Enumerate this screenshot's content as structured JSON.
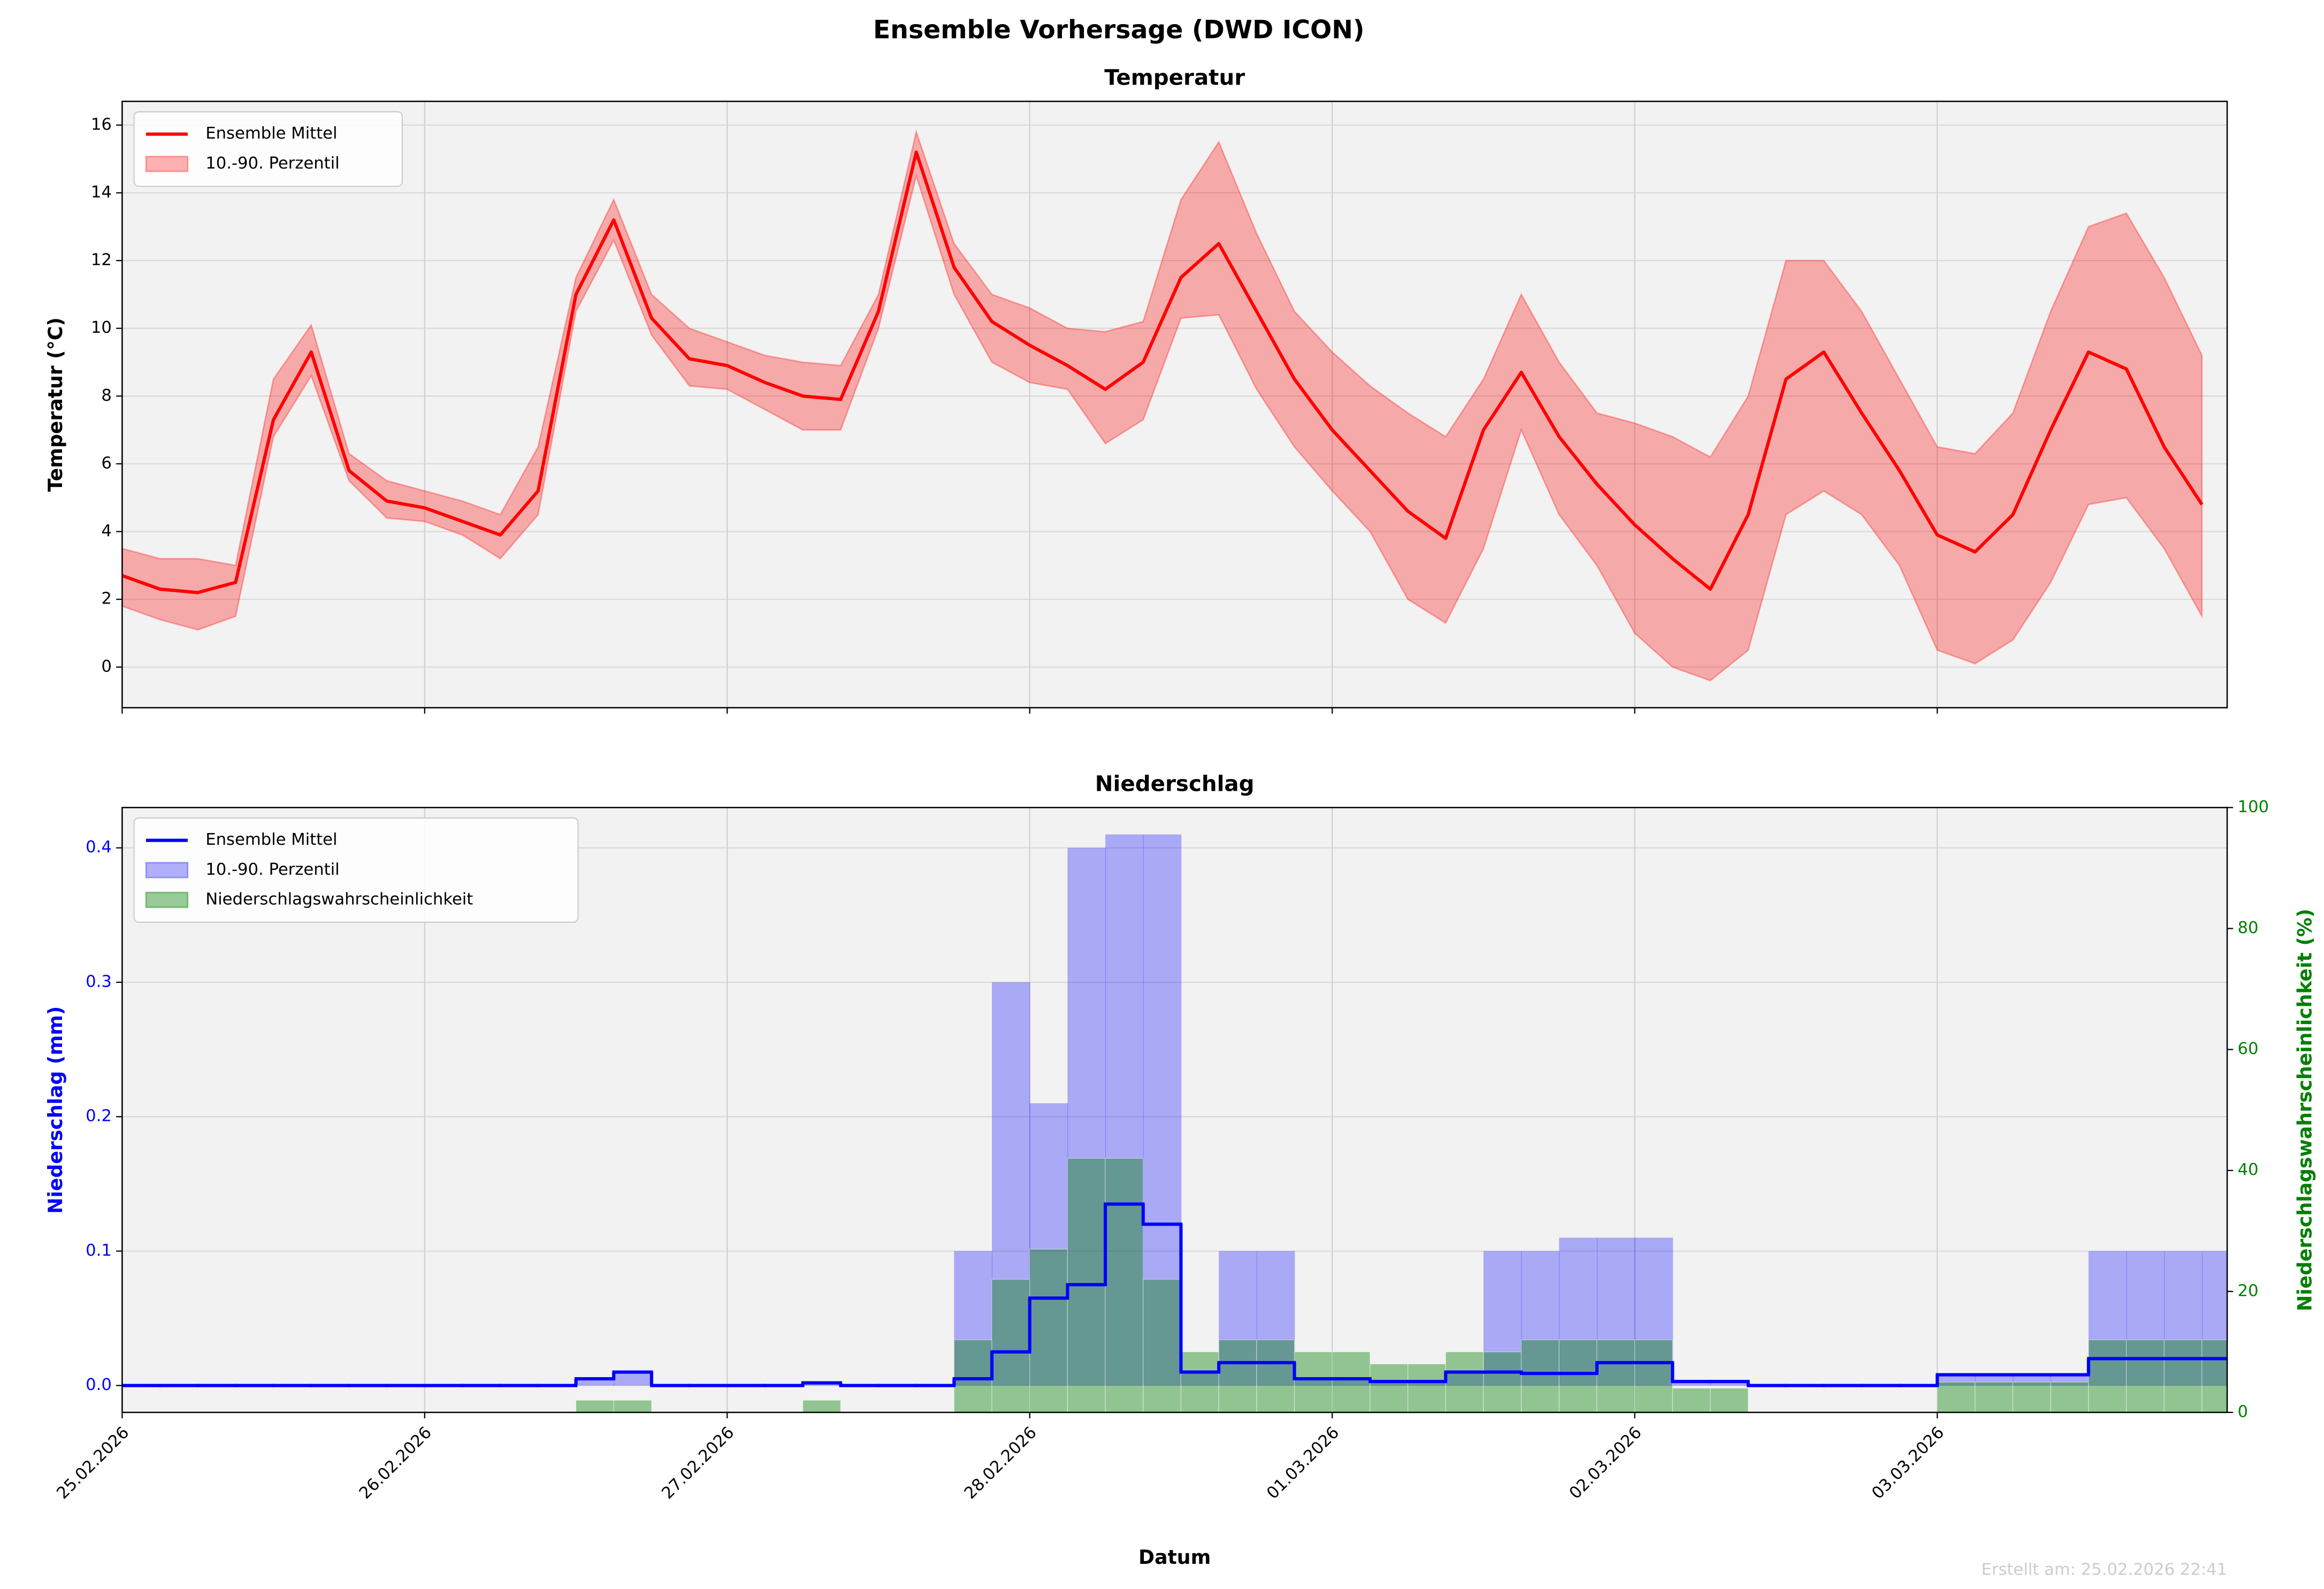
{
  "title": "Ensemble Vorhersage (DWD ICON)",
  "footer": "Erstellt am: 25.02.2026 22:41",
  "chart_data": [
    {
      "type": "line",
      "title": "Temperatur",
      "y_label": "Temperatur (°C)",
      "x": [
        "2026-02-25T00:00",
        "2026-02-25T03:00",
        "2026-02-25T06:00",
        "2026-02-25T09:00",
        "2026-02-25T12:00",
        "2026-02-25T15:00",
        "2026-02-25T18:00",
        "2026-02-25T21:00",
        "2026-02-26T00:00",
        "2026-02-26T03:00",
        "2026-02-26T06:00",
        "2026-02-26T09:00",
        "2026-02-26T12:00",
        "2026-02-26T15:00",
        "2026-02-26T18:00",
        "2026-02-26T21:00",
        "2026-02-27T00:00",
        "2026-02-27T03:00",
        "2026-02-27T06:00",
        "2026-02-27T09:00",
        "2026-02-27T12:00",
        "2026-02-27T15:00",
        "2026-02-27T18:00",
        "2026-02-27T21:00",
        "2026-02-28T00:00",
        "2026-02-28T03:00",
        "2026-02-28T06:00",
        "2026-02-28T09:00",
        "2026-02-28T12:00",
        "2026-02-28T15:00",
        "2026-02-28T18:00",
        "2026-02-28T21:00",
        "2026-03-01T00:00",
        "2026-03-01T03:00",
        "2026-03-01T06:00",
        "2026-03-01T09:00",
        "2026-03-01T12:00",
        "2026-03-01T15:00",
        "2026-03-01T18:00",
        "2026-03-01T21:00",
        "2026-03-02T00:00",
        "2026-03-02T03:00",
        "2026-03-02T06:00",
        "2026-03-02T09:00",
        "2026-03-02T12:00",
        "2026-03-02T15:00",
        "2026-03-02T18:00",
        "2026-03-02T21:00",
        "2026-03-03T00:00",
        "2026-03-03T03:00",
        "2026-03-03T06:00",
        "2026-03-03T09:00",
        "2026-03-03T12:00",
        "2026-03-03T15:00",
        "2026-03-03T18:00",
        "2026-03-03T21:00"
      ],
      "xlim": [
        "2026-02-25T00:00",
        "2026-03-03T23:00"
      ],
      "xticks": [
        "2026-02-25T00:00",
        "2026-02-26T00:00",
        "2026-02-27T00:00",
        "2026-02-28T00:00",
        "2026-03-01T00:00",
        "2026-03-02T00:00",
        "2026-03-03T00:00"
      ],
      "ylim": [
        -1.2,
        16.7
      ],
      "yticks": [
        0,
        2,
        4,
        6,
        8,
        10,
        12,
        14,
        16
      ],
      "grid": true,
      "legend": "upper left",
      "series": [
        {
          "name": "Ensemble Mittel",
          "color": "#ff0000",
          "values": [
            2.7,
            2.3,
            2.2,
            2.5,
            7.3,
            9.3,
            5.8,
            4.9,
            4.7,
            4.3,
            3.9,
            5.2,
            11.0,
            13.2,
            10.3,
            9.1,
            8.9,
            8.4,
            8.0,
            7.9,
            10.5,
            15.2,
            11.8,
            10.2,
            9.5,
            8.9,
            8.2,
            9.0,
            11.5,
            12.5,
            10.5,
            8.5,
            7.0,
            5.8,
            4.6,
            3.8,
            7.0,
            8.7,
            6.8,
            5.4,
            4.2,
            3.2,
            2.3,
            4.5,
            8.5,
            9.3,
            7.5,
            5.8,
            3.9,
            3.4,
            4.5,
            7.0,
            9.3,
            8.8,
            6.5,
            4.8
          ]
        }
      ],
      "bands": [
        {
          "name": "10.-90. Perzentil",
          "color": "#ff0000",
          "lower": [
            1.8,
            1.4,
            1.1,
            1.5,
            6.8,
            8.6,
            5.5,
            4.4,
            4.3,
            3.9,
            3.2,
            4.5,
            10.5,
            12.6,
            9.8,
            8.3,
            8.2,
            7.6,
            7.0,
            7.0,
            10.0,
            14.5,
            11.0,
            9.0,
            8.4,
            8.2,
            6.6,
            7.3,
            10.3,
            10.4,
            8.2,
            6.5,
            5.2,
            4.0,
            2.0,
            1.3,
            3.5,
            7.0,
            4.5,
            3.0,
            1.0,
            0.0,
            -0.4,
            0.5,
            4.5,
            5.2,
            4.5,
            3.0,
            0.5,
            0.1,
            0.8,
            2.5,
            4.8,
            5.0,
            3.5,
            1.5
          ],
          "upper": [
            3.5,
            3.2,
            3.2,
            3.0,
            8.5,
            10.1,
            6.3,
            5.5,
            5.2,
            4.9,
            4.5,
            6.5,
            11.5,
            13.8,
            11.0,
            10.0,
            9.6,
            9.2,
            9.0,
            8.9,
            11.0,
            15.8,
            12.5,
            11.0,
            10.6,
            10.0,
            9.9,
            10.2,
            13.8,
            15.5,
            12.8,
            10.5,
            9.3,
            8.3,
            7.5,
            6.8,
            8.5,
            11.0,
            9.0,
            7.5,
            7.2,
            6.8,
            6.2,
            8.0,
            12.0,
            12.0,
            10.5,
            8.5,
            6.5,
            6.3,
            7.5,
            10.5,
            13.0,
            13.4,
            11.5,
            9.2
          ]
        }
      ]
    },
    {
      "type": "step",
      "title": "Niederschlag",
      "x_label": "Datum",
      "y_label": "Niederschlag (mm)",
      "y2_label": "Niederschlagswahrscheinlichkeit (%)",
      "x": [
        "2026-02-25T00:00",
        "2026-02-25T03:00",
        "2026-02-25T06:00",
        "2026-02-25T09:00",
        "2026-02-25T12:00",
        "2026-02-25T15:00",
        "2026-02-25T18:00",
        "2026-02-25T21:00",
        "2026-02-26T00:00",
        "2026-02-26T03:00",
        "2026-02-26T06:00",
        "2026-02-26T09:00",
        "2026-02-26T12:00",
        "2026-02-26T15:00",
        "2026-02-26T18:00",
        "2026-02-26T21:00",
        "2026-02-27T00:00",
        "2026-02-27T03:00",
        "2026-02-27T06:00",
        "2026-02-27T09:00",
        "2026-02-27T12:00",
        "2026-02-27T15:00",
        "2026-02-27T18:00",
        "2026-02-27T21:00",
        "2026-02-28T00:00",
        "2026-02-28T03:00",
        "2026-02-28T06:00",
        "2026-02-28T09:00",
        "2026-02-28T12:00",
        "2026-02-28T15:00",
        "2026-02-28T18:00",
        "2026-02-28T21:00",
        "2026-03-01T00:00",
        "2026-03-01T03:00",
        "2026-03-01T06:00",
        "2026-03-01T09:00",
        "2026-03-01T12:00",
        "2026-03-01T15:00",
        "2026-03-01T18:00",
        "2026-03-01T21:00",
        "2026-03-02T00:00",
        "2026-03-02T03:00",
        "2026-03-02T06:00",
        "2026-03-02T09:00",
        "2026-03-02T12:00",
        "2026-03-02T15:00",
        "2026-03-02T18:00",
        "2026-03-02T21:00",
        "2026-03-03T00:00",
        "2026-03-03T03:00",
        "2026-03-03T06:00",
        "2026-03-03T09:00",
        "2026-03-03T12:00",
        "2026-03-03T15:00",
        "2026-03-03T18:00",
        "2026-03-03T21:00"
      ],
      "xlim": [
        "2026-02-25T00:00",
        "2026-03-03T23:00"
      ],
      "xticks": [
        {
          "value": "2026-02-25T00:00",
          "label": "25.02.2026"
        },
        {
          "value": "2026-02-26T00:00",
          "label": "26.02.2026"
        },
        {
          "value": "2026-02-27T00:00",
          "label": "27.02.2026"
        },
        {
          "value": "2026-02-28T00:00",
          "label": "28.02.2026"
        },
        {
          "value": "2026-03-01T00:00",
          "label": "01.03.2026"
        },
        {
          "value": "2026-03-02T00:00",
          "label": "02.03.2026"
        },
        {
          "value": "2026-03-03T00:00",
          "label": "03.03.2026"
        }
      ],
      "ylim": [
        -0.02,
        0.43
      ],
      "yticks": [
        {
          "value": 0,
          "label": "0.0"
        },
        0.1,
        0.2,
        0.3,
        0.4
      ],
      "y2lim": [
        0,
        100
      ],
      "y2ticks": [
        0,
        20,
        40,
        60,
        80,
        100
      ],
      "grid": true,
      "legend": "upper left",
      "series": [
        {
          "name": "Ensemble Mittel",
          "color": "#0000ff",
          "values": [
            0,
            0,
            0,
            0,
            0,
            0,
            0,
            0,
            0,
            0,
            0,
            0,
            0.005,
            0.01,
            0,
            0,
            0,
            0,
            0.002,
            0,
            0,
            0,
            0.005,
            0.025,
            0.065,
            0.075,
            0.135,
            0.12,
            0.01,
            0.017,
            0.017,
            0.005,
            0.005,
            0.003,
            0.003,
            0.01,
            0.01,
            0.009,
            0.009,
            0.017,
            0.017,
            0.003,
            0.003,
            0,
            0,
            0,
            0,
            0,
            0.008,
            0.008,
            0.008,
            0.008,
            0.02,
            0.02,
            0.02,
            0.02
          ]
        },
        {
          "name": "Niederschlagswahrscheinlichkeit",
          "color": "#008000",
          "axis": "y2",
          "values": [
            0,
            0,
            0,
            0,
            0,
            0,
            0,
            0,
            0,
            0,
            0,
            0,
            2,
            2,
            0,
            0,
            0,
            0,
            2,
            0,
            0,
            0,
            12,
            22,
            27,
            42,
            42,
            22,
            10,
            12,
            12,
            10,
            10,
            8,
            8,
            10,
            10,
            12,
            12,
            12,
            12,
            4,
            4,
            0,
            0,
            0,
            0,
            0,
            5,
            5,
            5,
            5,
            12,
            12,
            12,
            12
          ]
        }
      ],
      "bands": [
        {
          "name": "10.-90. Perzentil",
          "color": "#0000ff",
          "lower": [
            0,
            0,
            0,
            0,
            0,
            0,
            0,
            0,
            0,
            0,
            0,
            0,
            0,
            0,
            0,
            0,
            0,
            0,
            0,
            0,
            0,
            0,
            0,
            0,
            0,
            0,
            0,
            0,
            0,
            0,
            0,
            0,
            0,
            0,
            0,
            0,
            0,
            0,
            0,
            0,
            0,
            0,
            0,
            0,
            0,
            0,
            0,
            0,
            0,
            0,
            0,
            0,
            0,
            0,
            0,
            0
          ],
          "upper": [
            0,
            0,
            0,
            0,
            0,
            0,
            0,
            0,
            0,
            0,
            0,
            0,
            0.005,
            0.01,
            0,
            0,
            0,
            0,
            0.002,
            0,
            0,
            0,
            0.1,
            0.3,
            0.21,
            0.4,
            0.41,
            0.41,
            0.01,
            0.1,
            0.1,
            0.005,
            0.005,
            0.003,
            0.003,
            0.01,
            0.1,
            0.1,
            0.11,
            0.11,
            0.11,
            0.003,
            0.003,
            0,
            0,
            0,
            0,
            0,
            0.008,
            0.008,
            0.008,
            0.008,
            0.1,
            0.1,
            0.1,
            0.1
          ]
        }
      ]
    }
  ]
}
